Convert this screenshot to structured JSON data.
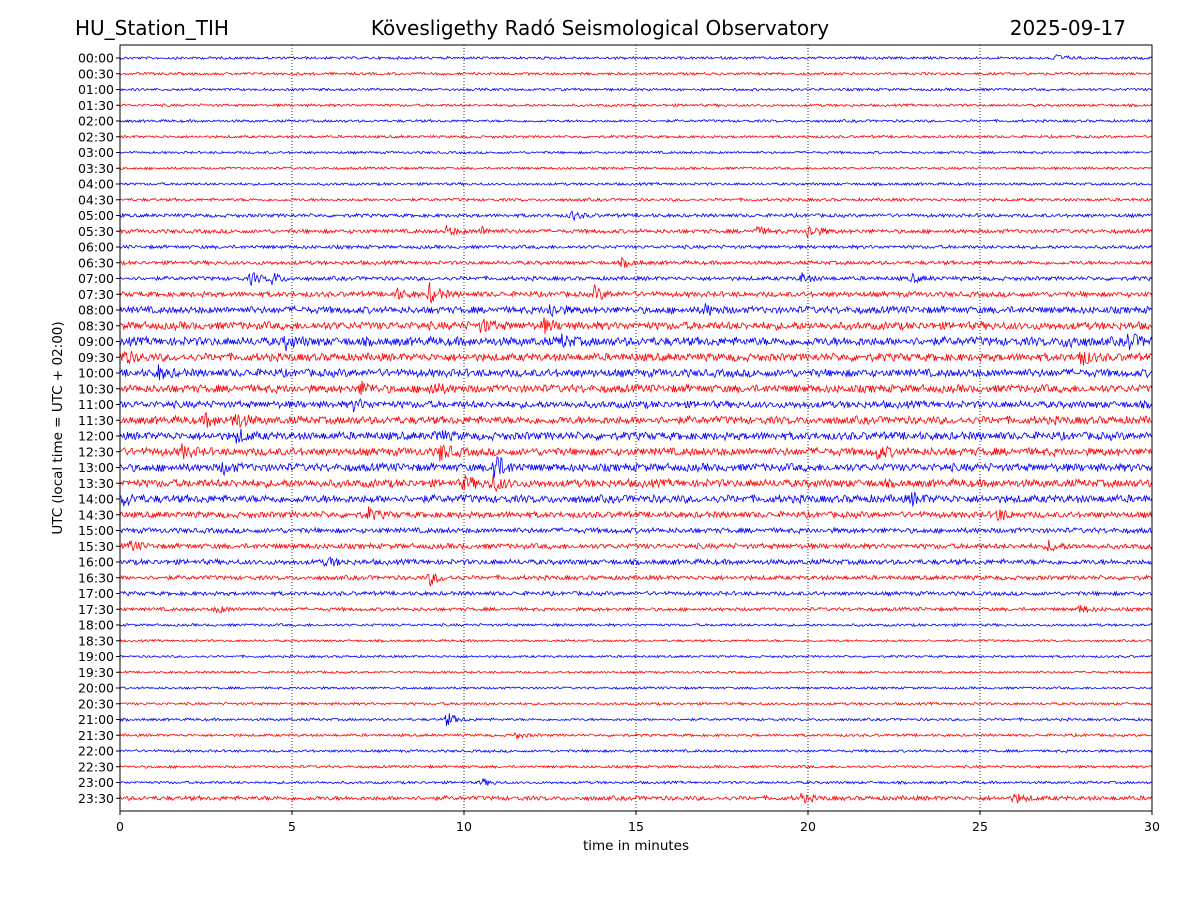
{
  "header": {
    "station": "HU_Station_TIH",
    "title": "Kövesligethy Radó Seismological Observatory",
    "date": "2025-09-17"
  },
  "chart_data": {
    "type": "line",
    "title": "Kövesligethy Radó Seismological Observatory",
    "xlabel": "time in minutes",
    "ylabel": "UTC (local time = UTC + 02:00)",
    "xlim": [
      0,
      30
    ],
    "x_ticks": [
      "0",
      "5",
      "10",
      "15",
      "20",
      "25",
      "30"
    ],
    "grid_x": [
      5,
      10,
      15,
      20,
      25
    ],
    "grid": "vertical dotted",
    "colors": [
      "#0000ff",
      "#ff0000"
    ],
    "rows": [
      {
        "label": "00:00",
        "noise": 1.5,
        "events": [
          [
            27.1,
            5
          ]
        ]
      },
      {
        "label": "00:30",
        "noise": 1.5,
        "events": []
      },
      {
        "label": "01:00",
        "noise": 1.5,
        "events": []
      },
      {
        "label": "01:30",
        "noise": 1.5,
        "events": []
      },
      {
        "label": "02:00",
        "noise": 1.5,
        "events": []
      },
      {
        "label": "02:30",
        "noise": 1.5,
        "events": []
      },
      {
        "label": "03:00",
        "noise": 1.4,
        "events": []
      },
      {
        "label": "03:30",
        "noise": 1.4,
        "events": []
      },
      {
        "label": "04:00",
        "noise": 1.5,
        "events": []
      },
      {
        "label": "04:30",
        "noise": 1.7,
        "events": []
      },
      {
        "label": "05:00",
        "noise": 2.0,
        "events": [
          [
            13.1,
            5
          ]
        ]
      },
      {
        "label": "05:30",
        "noise": 2.3,
        "events": [
          [
            9.5,
            5
          ],
          [
            10.5,
            4
          ],
          [
            18.5,
            4
          ],
          [
            20.0,
            8
          ]
        ]
      },
      {
        "label": "06:00",
        "noise": 2.0,
        "events": []
      },
      {
        "label": "06:30",
        "noise": 2.2,
        "events": [
          [
            14.6,
            4
          ]
        ]
      },
      {
        "label": "07:00",
        "noise": 2.3,
        "events": [
          [
            3.8,
            6
          ],
          [
            4.4,
            6
          ],
          [
            19.8,
            5
          ],
          [
            23.0,
            4
          ]
        ]
      },
      {
        "label": "07:30",
        "noise": 3.0,
        "events": [
          [
            8.0,
            6
          ],
          [
            9.0,
            10
          ],
          [
            13.8,
            7
          ]
        ]
      },
      {
        "label": "08:00",
        "noise": 4.0,
        "events": [
          [
            12.5,
            7
          ],
          [
            17.0,
            5
          ]
        ]
      },
      {
        "label": "08:30",
        "noise": 4.5,
        "events": [
          [
            10.5,
            6
          ],
          [
            12.3,
            6
          ]
        ]
      },
      {
        "label": "09:00",
        "noise": 5.0,
        "events": [
          [
            4.8,
            6
          ],
          [
            12.8,
            6
          ],
          [
            27.5,
            7
          ],
          [
            29.3,
            8
          ]
        ]
      },
      {
        "label": "09:30",
        "noise": 4.5,
        "events": [
          [
            0.1,
            6
          ],
          [
            27.9,
            8
          ]
        ]
      },
      {
        "label": "10:00",
        "noise": 4.5,
        "events": [
          [
            1.1,
            6
          ]
        ]
      },
      {
        "label": "10:30",
        "noise": 4.5,
        "events": [
          [
            7.0,
            6
          ],
          [
            9.0,
            7
          ]
        ]
      },
      {
        "label": "11:00",
        "noise": 4.0,
        "events": [
          [
            6.8,
            5
          ]
        ]
      },
      {
        "label": "11:30",
        "noise": 4.5,
        "events": [
          [
            2.5,
            6
          ],
          [
            3.3,
            9
          ]
        ]
      },
      {
        "label": "12:00",
        "noise": 4.5,
        "events": [
          [
            3.4,
            6
          ],
          [
            9.2,
            5
          ]
        ]
      },
      {
        "label": "12:30",
        "noise": 4.5,
        "events": [
          [
            1.8,
            6
          ],
          [
            9.3,
            8
          ],
          [
            22.0,
            6
          ]
        ]
      },
      {
        "label": "13:00",
        "noise": 4.5,
        "events": [
          [
            3.0,
            5
          ],
          [
            10.85,
            16
          ]
        ]
      },
      {
        "label": "13:30",
        "noise": 4.5,
        "events": [
          [
            10.0,
            6
          ],
          [
            10.8,
            9
          ]
        ]
      },
      {
        "label": "14:00",
        "noise": 4.5,
        "events": [
          [
            0.1,
            6
          ],
          [
            23.0,
            5
          ]
        ]
      },
      {
        "label": "14:30",
        "noise": 3.5,
        "events": [
          [
            7.2,
            6
          ],
          [
            25.5,
            6
          ]
        ]
      },
      {
        "label": "15:00",
        "noise": 3.0,
        "events": []
      },
      {
        "label": "15:30",
        "noise": 3.0,
        "events": [
          [
            0.3,
            5
          ],
          [
            27.0,
            5
          ]
        ]
      },
      {
        "label": "16:00",
        "noise": 3.0,
        "events": [
          [
            6.0,
            5
          ]
        ]
      },
      {
        "label": "16:30",
        "noise": 2.5,
        "events": [
          [
            9.0,
            7
          ]
        ]
      },
      {
        "label": "17:00",
        "noise": 2.3,
        "events": []
      },
      {
        "label": "17:30",
        "noise": 2.0,
        "events": [
          [
            2.8,
            4
          ],
          [
            27.9,
            4
          ]
        ]
      },
      {
        "label": "18:00",
        "noise": 1.5,
        "events": []
      },
      {
        "label": "18:30",
        "noise": 1.3,
        "events": []
      },
      {
        "label": "19:00",
        "noise": 1.3,
        "events": []
      },
      {
        "label": "19:30",
        "noise": 1.3,
        "events": []
      },
      {
        "label": "20:00",
        "noise": 1.3,
        "events": []
      },
      {
        "label": "20:30",
        "noise": 1.5,
        "events": []
      },
      {
        "label": "21:00",
        "noise": 1.5,
        "events": [
          [
            9.5,
            7
          ]
        ]
      },
      {
        "label": "21:30",
        "noise": 1.5,
        "events": [
          [
            11.5,
            3
          ]
        ]
      },
      {
        "label": "22:00",
        "noise": 1.5,
        "events": []
      },
      {
        "label": "22:30",
        "noise": 1.5,
        "events": []
      },
      {
        "label": "23:00",
        "noise": 1.5,
        "events": [
          [
            10.5,
            4
          ]
        ]
      },
      {
        "label": "23:30",
        "noise": 2.5,
        "events": [
          [
            19.8,
            4
          ],
          [
            26.0,
            5
          ]
        ]
      }
    ]
  }
}
